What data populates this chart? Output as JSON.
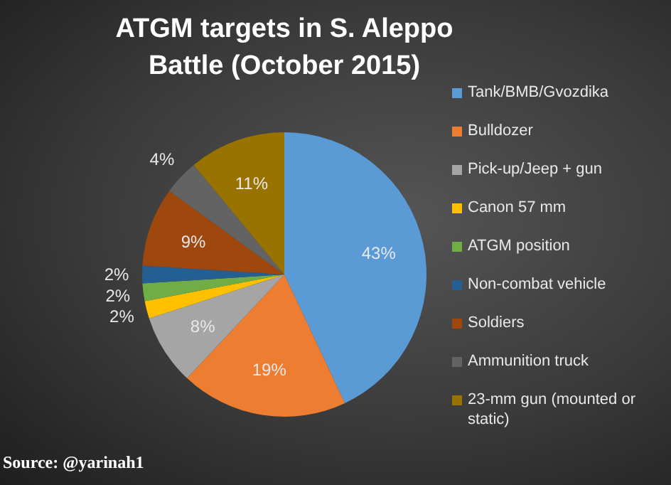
{
  "chart_data": {
    "type": "pie",
    "title": "ATGM targets in S. Aleppo Battle (October 2015)",
    "categories": [
      "Tank/BMB/Gvozdika",
      "Bulldozer",
      "Pick-up/Jeep + gun",
      "Canon 57 mm",
      "ATGM position",
      "Non-combat vehicle",
      "Soldiers",
      "Ammunition truck",
      "23-mm gun (mounted or static)"
    ],
    "values": [
      43,
      19,
      8,
      2,
      2,
      2,
      9,
      4,
      11
    ],
    "colors": [
      "#5b9bd5",
      "#ed7d31",
      "#a5a5a5",
      "#ffc000",
      "#70ad47",
      "#255e91",
      "#9e480e",
      "#636363",
      "#997300"
    ],
    "value_labels": [
      "43%",
      "19%",
      "8%",
      "2%",
      "2%",
      "2%",
      "9%",
      "4%",
      "11%"
    ],
    "legend": "right",
    "annotations": [
      "Source: @yarinah1"
    ]
  }
}
